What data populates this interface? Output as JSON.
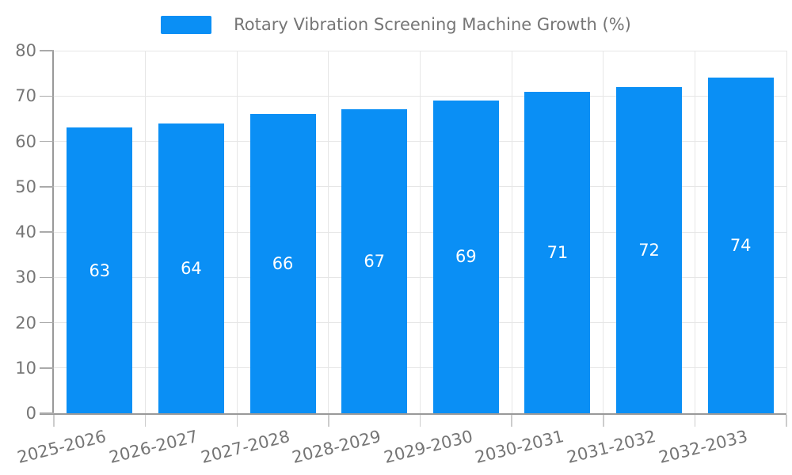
{
  "chart_data": {
    "type": "bar",
    "title": "Rotary Vibration Screening Machine Growth (%)",
    "legend": [
      "Rotary Vibration Screening Machine Growth (%)"
    ],
    "legend_position": "top",
    "categories": [
      "2025-2026",
      "2026-2027",
      "2027-2028",
      "2028-2029",
      "2029-2030",
      "2030-2031",
      "2031-2032",
      "2032-2033"
    ],
    "values": [
      63,
      64,
      66,
      67,
      69,
      71,
      72,
      74
    ],
    "xlabel": "",
    "ylabel": "",
    "ylim": [
      0,
      80
    ],
    "yticks": [
      0,
      10,
      20,
      30,
      40,
      50,
      60,
      70,
      80
    ],
    "grid": true,
    "x_label_rotation_deg": -14,
    "colors": {
      "bar": "#0A8FF5",
      "bar_value_label": "#ffffff",
      "axis_text": "#757575",
      "axis_line": "#999999",
      "gridline": "#e6e6e6",
      "tick": "#aaaaaa",
      "x_tick": "#cccccc",
      "background": "#ffffff"
    }
  }
}
